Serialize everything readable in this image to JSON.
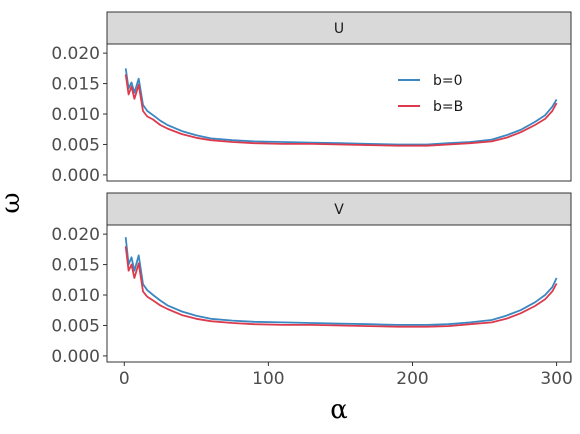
{
  "chart_data": {
    "type": "line",
    "xlabel": "α",
    "ylabel": "ω",
    "xlim": [
      -12,
      310
    ],
    "ylim": [
      -0.001,
      0.0215
    ],
    "xticks": [
      0,
      100,
      200,
      300
    ],
    "xtick_labels": [
      "0",
      "100",
      "200",
      "300"
    ],
    "yticks": [
      0,
      0.005,
      0.01,
      0.015,
      0.02
    ],
    "ytick_labels": [
      "0.000",
      "0.005",
      "0.010",
      "0.015",
      "0.020"
    ],
    "legend": {
      "position": "top-right",
      "entries": [
        "b=0",
        "b=B"
      ]
    },
    "colors": {
      "b=0": "#3a87c2",
      "b=B": "#dc3b4d"
    },
    "grid": false,
    "panels": [
      {
        "strip": "U",
        "series": [
          {
            "name": "b=0",
            "x": [
              1,
              3,
              5,
              7,
              10,
              13,
              16,
              20,
              25,
              30,
              40,
              50,
              60,
              75,
              90,
              110,
              130,
              150,
              170,
              190,
              210,
              225,
              240,
              255,
              265,
              275,
              285,
              292,
              297,
              300
            ],
            "y": [
              0.0175,
              0.0142,
              0.0152,
              0.0135,
              0.0158,
              0.0115,
              0.0105,
              0.0098,
              0.0089,
              0.0082,
              0.0072,
              0.0065,
              0.006,
              0.0057,
              0.0055,
              0.0054,
              0.0053,
              0.0052,
              0.0051,
              0.005,
              0.005,
              0.0052,
              0.0054,
              0.0058,
              0.0065,
              0.0074,
              0.0087,
              0.0098,
              0.0112,
              0.0124
            ]
          },
          {
            "name": "b=B",
            "x": [
              1,
              3,
              5,
              7,
              10,
              13,
              16,
              20,
              25,
              30,
              40,
              50,
              60,
              75,
              90,
              110,
              130,
              150,
              170,
              190,
              210,
              225,
              240,
              255,
              265,
              275,
              285,
              292,
              297,
              300
            ],
            "y": [
              0.0165,
              0.0132,
              0.0145,
              0.0125,
              0.0148,
              0.0105,
              0.0096,
              0.0091,
              0.0082,
              0.0076,
              0.0067,
              0.0061,
              0.0057,
              0.0054,
              0.0052,
              0.0051,
              0.0051,
              0.005,
              0.0049,
              0.0048,
              0.0048,
              0.005,
              0.0052,
              0.0055,
              0.0061,
              0.007,
              0.0082,
              0.0092,
              0.0105,
              0.0118
            ]
          }
        ]
      },
      {
        "strip": "V",
        "series": [
          {
            "name": "b=0",
            "x": [
              1,
              3,
              5,
              7,
              10,
              13,
              16,
              20,
              25,
              30,
              40,
              50,
              60,
              75,
              90,
              110,
              130,
              150,
              170,
              190,
              210,
              225,
              240,
              255,
              265,
              275,
              285,
              292,
              297,
              300
            ],
            "y": [
              0.0195,
              0.015,
              0.0162,
              0.014,
              0.0165,
              0.0118,
              0.0108,
              0.01,
              0.0091,
              0.0083,
              0.0073,
              0.0066,
              0.0061,
              0.0058,
              0.0056,
              0.0055,
              0.0054,
              0.0053,
              0.0052,
              0.0051,
              0.0051,
              0.0052,
              0.0055,
              0.0059,
              0.0066,
              0.0075,
              0.0088,
              0.01,
              0.0113,
              0.0128
            ]
          },
          {
            "name": "b=B",
            "x": [
              1,
              3,
              5,
              7,
              10,
              13,
              16,
              20,
              25,
              30,
              40,
              50,
              60,
              75,
              90,
              110,
              130,
              150,
              170,
              190,
              210,
              225,
              240,
              255,
              265,
              275,
              285,
              292,
              297,
              300
            ],
            "y": [
              0.018,
              0.014,
              0.015,
              0.0128,
              0.0152,
              0.0106,
              0.0097,
              0.0091,
              0.0083,
              0.0077,
              0.0067,
              0.0061,
              0.0057,
              0.0054,
              0.0052,
              0.0051,
              0.0051,
              0.005,
              0.0049,
              0.0048,
              0.0048,
              0.0049,
              0.0052,
              0.0055,
              0.0061,
              0.007,
              0.0082,
              0.0093,
              0.0106,
              0.0119
            ]
          }
        ]
      }
    ]
  }
}
